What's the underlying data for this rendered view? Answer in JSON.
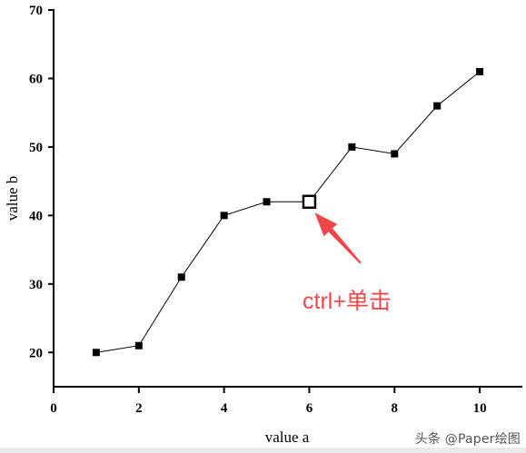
{
  "chart_data": {
    "type": "line",
    "xlabel": "value a",
    "ylabel": "value b",
    "xlim": [
      0,
      11
    ],
    "ylim": [
      15,
      70
    ],
    "xticks": [
      0,
      2,
      4,
      6,
      8,
      10
    ],
    "yticks": [
      20,
      30,
      40,
      50,
      60,
      70
    ],
    "grid": false,
    "series": [
      {
        "x": [
          1,
          2,
          3,
          4,
          5,
          6,
          7,
          8,
          9,
          10
        ],
        "y": [
          20,
          21,
          31,
          40,
          42,
          42,
          50,
          49,
          56,
          61
        ],
        "marker": "filled-square",
        "color": "#000000",
        "highlighted_index": 5
      }
    ],
    "annotation": {
      "text": "ctrl+单击",
      "color": "#f0474a",
      "points_to_index": 5
    }
  },
  "watermark": "头条 @Paper绘图"
}
